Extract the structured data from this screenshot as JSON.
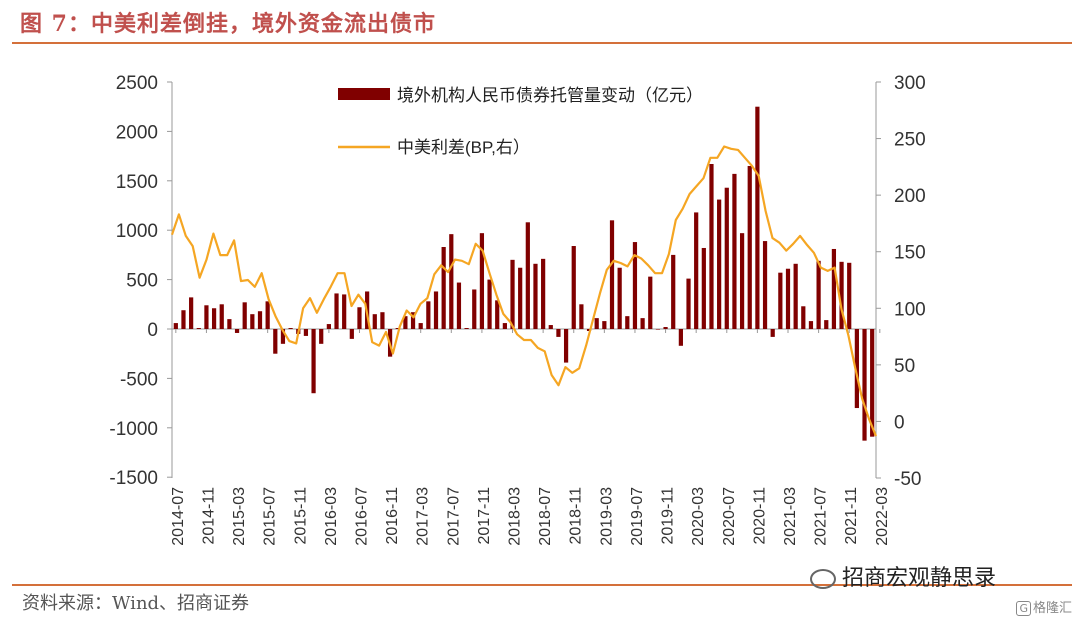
{
  "figure": {
    "title": "图 7：中美利差倒挂，境外资金流出债市",
    "source": "资料来源：Wind、招商证券",
    "watermark": "招商宏观静思录",
    "brand": "格隆汇",
    "brand_mark": "G"
  },
  "chart_data": {
    "type": "bar+line",
    "colors": {
      "bar": "#800000",
      "line": "#f5a623",
      "axis": "#999999"
    },
    "left_axis": {
      "ylim": [
        -1500,
        2500
      ],
      "ticks": [
        -1500,
        -1000,
        -500,
        0,
        500,
        1000,
        1500,
        2000,
        2500
      ]
    },
    "right_axis": {
      "ylim": [
        -50,
        300
      ],
      "ticks": [
        -50,
        0,
        50,
        100,
        150,
        200,
        250,
        300
      ]
    },
    "x_tick_labels": [
      "2014-07",
      "2014-11",
      "2015-03",
      "2015-07",
      "2015-11",
      "2016-03",
      "2016-07",
      "2016-11",
      "2017-03",
      "2017-07",
      "2017-11",
      "2018-03",
      "2018-07",
      "2018-11",
      "2019-03",
      "2019-07",
      "2019-11",
      "2020-03",
      "2020-07",
      "2020-11",
      "2021-03",
      "2021-07",
      "2021-11",
      "2022-03"
    ],
    "series": [
      {
        "name": "境外机构人民币债券托管量变动（亿元）",
        "kind": "bar",
        "axis": "left",
        "values": [
          60,
          190,
          320,
          10,
          240,
          210,
          250,
          100,
          -40,
          270,
          150,
          180,
          280,
          -250,
          -150,
          10,
          -50,
          -70,
          -650,
          -150,
          50,
          360,
          350,
          -100,
          220,
          380,
          150,
          170,
          -280,
          10,
          130,
          170,
          60,
          280,
          380,
          830,
          960,
          470,
          10,
          400,
          970,
          500,
          290,
          60,
          700,
          620,
          1080,
          660,
          710,
          40,
          -80,
          -340,
          840,
          250,
          -20,
          110,
          80,
          1100,
          620,
          130,
          880,
          110,
          530,
          0,
          20,
          750,
          -170,
          510,
          1180,
          820,
          1670,
          1310,
          1430,
          1570,
          970,
          1650,
          2250,
          890,
          -80,
          570,
          610,
          660,
          230,
          80,
          690,
          90,
          810,
          680,
          670,
          -800,
          -1130,
          -1090
        ]
      },
      {
        "name": "中美利差(BP,右）",
        "kind": "line",
        "axis": "right",
        "values": [
          165,
          183,
          164,
          155,
          127,
          143,
          166,
          147,
          147,
          160,
          124,
          125,
          119,
          131,
          108,
          93,
          81,
          71,
          69,
          100,
          109,
          96,
          108,
          119,
          131,
          131,
          102,
          112,
          104,
          70,
          67,
          79,
          60,
          84,
          98,
          92,
          104,
          109,
          130,
          138,
          132,
          143,
          142,
          139,
          157,
          151,
          131,
          112,
          95,
          88,
          77,
          72,
          72,
          65,
          62,
          41,
          32,
          48,
          43,
          47,
          67,
          90,
          113,
          134,
          142,
          140,
          137,
          147,
          144,
          138,
          131,
          131,
          148,
          178,
          188,
          201,
          208,
          215,
          233,
          233,
          243,
          241,
          240,
          233,
          226,
          217,
          186,
          162,
          158,
          151,
          157,
          164,
          156,
          149,
          136,
          133,
          136,
          99,
          76,
          47,
          20,
          2,
          -13
        ]
      }
    ]
  }
}
